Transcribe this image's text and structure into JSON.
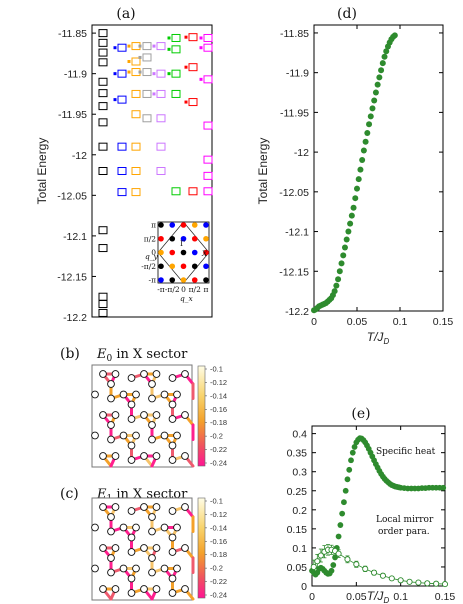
{
  "chart_data": [
    {
      "panel": "(a)",
      "type": "scatter",
      "ylabel": "Total Energy",
      "ylim": [
        -12.2,
        -11.84
      ],
      "yticks": [
        "-11.85",
        "-11.9",
        "-11.95",
        "-12",
        "-12.05",
        "-12.1",
        "-12.15",
        "-12.2"
      ],
      "grid": false,
      "series": [
        {
          "color": "#000000",
          "values": [
            -11.85,
            -11.862,
            -11.874,
            -11.886,
            -11.91,
            -11.924,
            -11.94,
            -11.96,
            -11.99,
            -12.02,
            -12.093,
            -12.115,
            -12.175,
            -12.184,
            -12.195
          ]
        },
        {
          "color": "#0000ff",
          "values": [
            -11.868,
            -11.9,
            -11.932,
            -11.99,
            -12.02,
            -12.046
          ]
        },
        {
          "color": "#ffa500",
          "values": [
            -11.866,
            -11.885,
            -11.898,
            -11.925,
            -11.95,
            -11.99,
            -12.02,
            -12.046
          ]
        },
        {
          "color": "#9f9f9f",
          "values": [
            -11.866,
            -11.88,
            -11.898,
            -11.925,
            -11.955
          ]
        },
        {
          "color": "#cc77ff",
          "values": [
            -11.866,
            -11.9,
            -11.925,
            -11.955,
            -11.99,
            -12.02
          ]
        },
        {
          "color": "#00cc00",
          "values": [
            -11.856,
            -11.87,
            -11.9,
            -11.925,
            -12.045
          ]
        },
        {
          "color": "#ff0000",
          "values": [
            -11.855,
            -11.892,
            -11.935,
            -12.045
          ]
        },
        {
          "color": "#ff00ff",
          "values": [
            -11.856,
            -11.868,
            -11.907,
            -11.964,
            -12.006,
            -12.026,
            -12.045
          ]
        }
      ],
      "inset": {
        "xlabel": "q_x",
        "ylabel": "q_y",
        "xticks": [
          "-π",
          "-π/2",
          "0",
          "π/2",
          "π"
        ],
        "yticks": [
          "π",
          "π/2",
          "0",
          "-π/2",
          "-π"
        ],
        "labels": [
          "Γ",
          "X"
        ]
      }
    },
    {
      "panel": "(d)",
      "type": "scatter",
      "xlabel_main": "T/J",
      "xlabel_sub": "D",
      "ylabel": "Total Energy",
      "xlim": [
        0,
        0.15
      ],
      "ylim": [
        -12.2,
        -11.84
      ],
      "xticks": [
        "0",
        "0.05",
        "0.1",
        "0.15"
      ],
      "yticks": [
        "-11.85",
        "-11.9",
        "-11.95",
        "-12",
        "-12.05",
        "-12.1",
        "-12.15",
        "-12.2"
      ],
      "series": [
        {
          "color": "#2e8b2e",
          "x": [
            0.0,
            0.002,
            0.004,
            0.006,
            0.008,
            0.01,
            0.012,
            0.014,
            0.016,
            0.018,
            0.02,
            0.022,
            0.024,
            0.026,
            0.028,
            0.03,
            0.032,
            0.034,
            0.036,
            0.038,
            0.04,
            0.042,
            0.044,
            0.046,
            0.048,
            0.05,
            0.052,
            0.054,
            0.056,
            0.058,
            0.06,
            0.062,
            0.064,
            0.066,
            0.068,
            0.07,
            0.072,
            0.074,
            0.076,
            0.078,
            0.08,
            0.082,
            0.084,
            0.086,
            0.088,
            0.09,
            0.092,
            0.094
          ],
          "y": [
            -12.199,
            -12.198,
            -12.196,
            -12.194,
            -12.193,
            -12.192,
            -12.191,
            -12.19,
            -12.188,
            -12.186,
            -12.184,
            -12.18,
            -12.175,
            -12.168,
            -12.16,
            -12.15,
            -12.14,
            -12.13,
            -12.12,
            -12.11,
            -12.1,
            -12.09,
            -12.08,
            -12.07,
            -12.058,
            -12.046,
            -12.034,
            -12.022,
            -12.01,
            -11.998,
            -11.987,
            -11.976,
            -11.965,
            -11.955,
            -11.945,
            -11.935,
            -11.925,
            -11.915,
            -11.906,
            -11.897,
            -11.888,
            -11.88,
            -11.873,
            -11.867,
            -11.862,
            -11.858,
            -11.855,
            -11.853
          ]
        }
      ]
    },
    {
      "panel": "(e)",
      "type": "scatter",
      "xlabel_main": "T/J",
      "xlabel_sub": "D",
      "xlim": [
        0,
        0.15
      ],
      "ylim": [
        0,
        0.42
      ],
      "xticks": [
        "0",
        "0.05",
        "0.1",
        "0.15"
      ],
      "yticks": [
        "0",
        "0.05",
        "0.1",
        "0.15",
        "0.2",
        "0.25",
        "0.3",
        "0.35",
        "0.4"
      ],
      "annotations": [
        "Specific heat",
        "Local mirror",
        "order para."
      ],
      "series": [
        {
          "color": "#2e8b2e",
          "style": "filled",
          "x": [
            0.0,
            0.002,
            0.004,
            0.006,
            0.008,
            0.01,
            0.012,
            0.014,
            0.016,
            0.018,
            0.02,
            0.022,
            0.024,
            0.026,
            0.028,
            0.03,
            0.032,
            0.034,
            0.036,
            0.038,
            0.04,
            0.042,
            0.044,
            0.046,
            0.048,
            0.05,
            0.052,
            0.054,
            0.056,
            0.058,
            0.06,
            0.062,
            0.064,
            0.066,
            0.068,
            0.07,
            0.072,
            0.074,
            0.076,
            0.078,
            0.08,
            0.082,
            0.084,
            0.086,
            0.088,
            0.09,
            0.092,
            0.094,
            0.096,
            0.098,
            0.1,
            0.104,
            0.108,
            0.112,
            0.116,
            0.12,
            0.124,
            0.128,
            0.132,
            0.136,
            0.14,
            0.144,
            0.148
          ],
          "y": [
            0.04,
            0.035,
            0.03,
            0.035,
            0.045,
            0.048,
            0.045,
            0.04,
            0.035,
            0.032,
            0.033,
            0.04,
            0.055,
            0.075,
            0.1,
            0.13,
            0.16,
            0.19,
            0.22,
            0.25,
            0.28,
            0.305,
            0.33,
            0.35,
            0.365,
            0.377,
            0.384,
            0.388,
            0.387,
            0.383,
            0.377,
            0.369,
            0.36,
            0.35,
            0.34,
            0.33,
            0.32,
            0.311,
            0.302,
            0.294,
            0.287,
            0.281,
            0.276,
            0.272,
            0.268,
            0.265,
            0.263,
            0.261,
            0.26,
            0.259,
            0.258,
            0.257,
            0.256,
            0.256,
            0.256,
            0.256,
            0.257,
            0.257,
            0.258,
            0.258,
            0.258,
            0.258,
            0.258
          ]
        },
        {
          "color": "#2e8b2e",
          "style": "open-errorbar",
          "x": [
            0.002,
            0.006,
            0.01,
            0.014,
            0.018,
            0.022,
            0.026,
            0.03,
            0.04,
            0.05,
            0.06,
            0.07,
            0.08,
            0.09,
            0.1,
            0.11,
            0.12,
            0.13,
            0.14,
            0.15
          ],
          "y": [
            0.05,
            0.065,
            0.08,
            0.09,
            0.095,
            0.095,
            0.092,
            0.085,
            0.07,
            0.057,
            0.045,
            0.035,
            0.027,
            0.02,
            0.015,
            0.011,
            0.009,
            0.007,
            0.006,
            0.005
          ],
          "err": [
            0.018,
            0.018,
            0.017,
            0.016,
            0.014,
            0.012,
            0.011,
            0.01,
            0.009,
            0.008,
            0.007,
            0.006,
            0.005,
            0.004,
            0.004,
            0.003,
            0.003,
            0.003,
            0.002,
            0.002
          ]
        }
      ]
    },
    {
      "panel": "(b)",
      "type": "heatmap",
      "title_sym": "E",
      "title_sub": "0",
      "title_rest": " in X sector",
      "colorbar_ticks": [
        "-0.1",
        "-0.12",
        "-0.14",
        "-0.16",
        "-0.18",
        "-0.2",
        "-0.22",
        "-0.24"
      ]
    },
    {
      "panel": "(c)",
      "type": "heatmap",
      "title_sym": "E",
      "title_sub": "1",
      "title_rest": " in X sector",
      "colorbar_ticks": [
        "-0.1",
        "-0.12",
        "-0.14",
        "-0.16",
        "-0.18",
        "-0.2",
        "-0.22",
        "-0.24"
      ]
    }
  ],
  "colors": {
    "accent": "#2e8b2e",
    "bond_low": "#ff1f8e",
    "bond_mid": "#f6a700",
    "bond_high": "#fffce0"
  }
}
